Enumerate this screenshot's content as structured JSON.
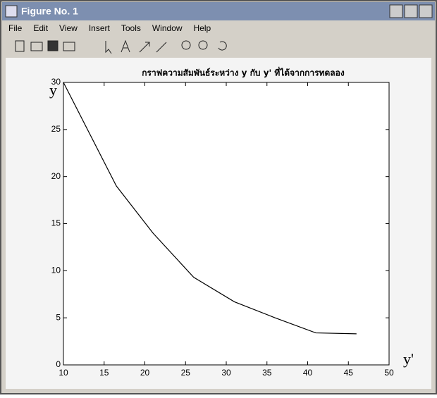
{
  "window": {
    "title": "Figure No. 1",
    "menu": [
      "File",
      "Edit",
      "View",
      "Insert",
      "Tools",
      "Window",
      "Help"
    ]
  },
  "chart_data": {
    "type": "line",
    "title": "กราฟความสัมพันธ์ระหว่าง y กับ y' ที่ได้จากการทดลอง",
    "x_label": "y'",
    "y_label": "y",
    "x": [
      10,
      16.5,
      21,
      26,
      31,
      36,
      41,
      46
    ],
    "series": [
      {
        "name": "y",
        "color": "#000000",
        "values": [
          30,
          19,
          14,
          9.3,
          6.7,
          5,
          3.4,
          3.3
        ]
      }
    ],
    "xlim": [
      10,
      50
    ],
    "xticks": [
      10,
      15,
      20,
      25,
      30,
      35,
      40,
      45,
      50
    ],
    "ylim": [
      0,
      30
    ],
    "yticks": [
      0,
      5,
      10,
      15,
      20,
      25,
      30
    ],
    "grid": false
  }
}
